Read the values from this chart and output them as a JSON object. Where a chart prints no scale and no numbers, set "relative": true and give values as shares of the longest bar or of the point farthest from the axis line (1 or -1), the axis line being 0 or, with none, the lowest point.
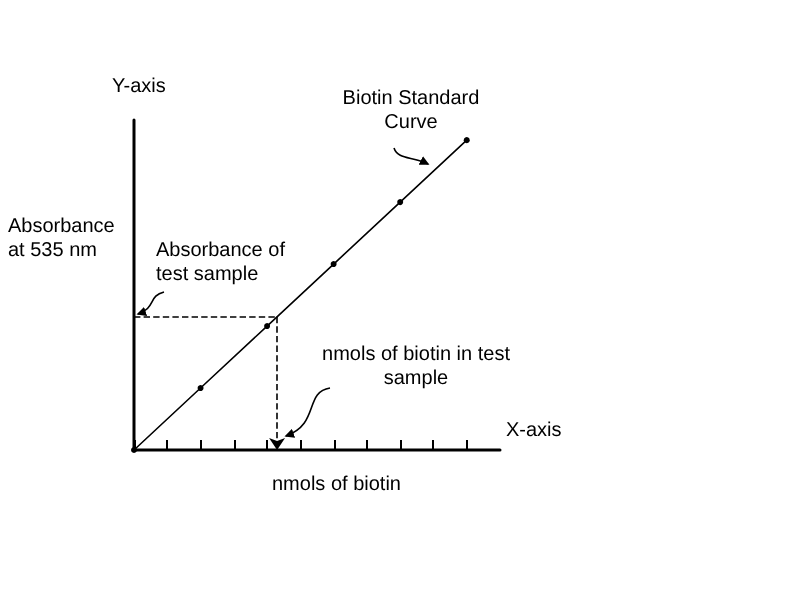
{
  "chart_data": {
    "type": "line",
    "relative": true,
    "xlabel": "nmols of biotin",
    "ylabel": "Absorbance at 535 nm",
    "categories": [
      null,
      null,
      null,
      null,
      null,
      null,
      null,
      null,
      null,
      null,
      null
    ],
    "series": [
      {
        "color": "#000000",
        "values": [
          0,
          null,
          0.2,
          null,
          0.4,
          null,
          0.6,
          null,
          0.8,
          null,
          1
        ]
      }
    ],
    "ref_lines": [
      {
        "axis": "y",
        "value": 0.43,
        "line_style": "dashed",
        "color": "#000000"
      }
    ],
    "annotations": [
      "Y-axis",
      "X-axis",
      "Biotin Standard Curve",
      "Absorbance of test sample",
      "nmols of biotin in test sample"
    ],
    "grid": false,
    "marker": "circle",
    "line_style": "solid"
  }
}
